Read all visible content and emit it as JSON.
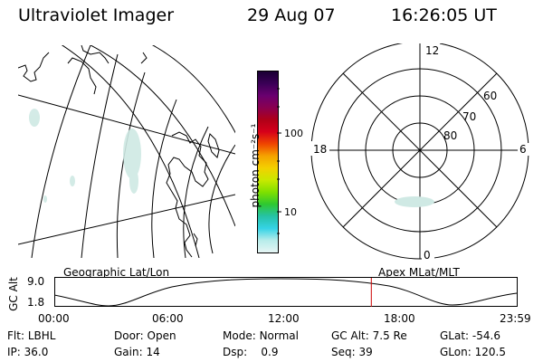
{
  "header": {
    "instrument": "Ultraviolet Imager",
    "date": "29 Aug 07",
    "time": "16:26:05 UT"
  },
  "colorbar": {
    "unit_label": "photon cm⁻²s⁻¹",
    "tick_labels": [
      "100",
      "10"
    ],
    "colors": [
      "#1a0033",
      "#3b0057",
      "#6a006f",
      "#8a0050",
      "#b00018",
      "#d6001a",
      "#ef4500",
      "#f5a300",
      "#f3d000",
      "#c9e900",
      "#7fe000",
      "#2ec830",
      "#26c2a6",
      "#35d3e6",
      "#b7ecea",
      "#e6f5f4"
    ]
  },
  "polar_plot": {
    "mlt_labels": {
      "top": "12",
      "left": "18",
      "right": "6",
      "bottom": "0"
    },
    "lat_labels": [
      "60",
      "70",
      "80"
    ]
  },
  "labels": {
    "left_caption": "Geographic Lat/Lon",
    "right_caption": "Apex MLat/MLT"
  },
  "timeline": {
    "y_axis_label": "GC Alt",
    "y_ticks": [
      "9.0",
      "1.8"
    ],
    "x_ticks": [
      "00:00",
      "06:00",
      "12:00",
      "18:00",
      "23:59"
    ],
    "marker_color": "#cc0000",
    "marker_time_hours": 16.43
  },
  "status": {
    "row1": [
      {
        "key": "Flt:",
        "value": "LBHL"
      },
      {
        "key": "Door:",
        "value": "Open"
      },
      {
        "key": "Mode:",
        "value": "Normal"
      },
      {
        "key": "GC Alt:",
        "value": "7.5 Re"
      },
      {
        "key": "GLat:",
        "value": "-54.6"
      }
    ],
    "row2": [
      {
        "key": "IP:",
        "value": "36.0"
      },
      {
        "key": "Gain:",
        "value": "14"
      },
      {
        "key": "Dsp:",
        "value": "0.9"
      },
      {
        "key": "Seq:",
        "value": "39"
      },
      {
        "key": "GLon:",
        "value": "120.5"
      }
    ]
  }
}
